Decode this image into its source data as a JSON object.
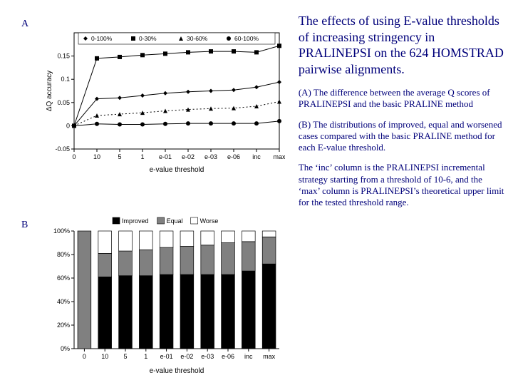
{
  "labels": {
    "A": "A",
    "B": "B"
  },
  "text": {
    "title": "The effects of using E-value thresholds of increasing stringency in PRALINEPSI on the 624 HOMSTRAD pairwise alignments.",
    "pA": "(A) The difference between the average Q scores of PRALINEPSI and the basic PRALINE method",
    "pB": "(B) The distributions of improved, equal and worsened cases compared with the basic PRALINE method for each E-value threshold.",
    "pC": "The ‘inc’ column is the PRALINEPSI incremental strategy starting from a threshold of 10-6, and the ‘max’ column is PRALINEPSI’s theoretical upper limit for the tested threshold range."
  },
  "chartA": {
    "type": "line",
    "xlabel": "e-value threshold",
    "ylabel": "ΔQ accuracy",
    "label_fontsize": 10,
    "categories": [
      "0",
      "10",
      "5",
      "1",
      "e-01",
      "e-02",
      "e-03",
      "e-06",
      "inc",
      "max"
    ],
    "ylim": [
      -0.05,
      0.2
    ],
    "yticks": [
      -0.05,
      0,
      0.05,
      0.1,
      0.15
    ],
    "legend": [
      "0-100%",
      "0-30%",
      "30-60%",
      "60-100%"
    ],
    "markers": [
      "diamond",
      "square",
      "triangle",
      "circle"
    ],
    "line_styles": [
      "solid",
      "solid",
      "dotted",
      "solid"
    ],
    "line_colors": [
      "#000000",
      "#000000",
      "#000000",
      "#000000"
    ],
    "series": {
      "0-100%": [
        0.0,
        0.058,
        0.06,
        0.065,
        0.07,
        0.073,
        0.075,
        0.077,
        0.083,
        0.094
      ],
      "0-30%": [
        0.0,
        0.145,
        0.148,
        0.152,
        0.155,
        0.158,
        0.16,
        0.16,
        0.158,
        0.172
      ],
      "30-60%": [
        0.0,
        0.022,
        0.025,
        0.028,
        0.032,
        0.035,
        0.037,
        0.038,
        0.042,
        0.052
      ],
      "60-100%": [
        0.0,
        0.004,
        0.003,
        0.003,
        0.004,
        0.005,
        0.005,
        0.005,
        0.005,
        0.01
      ]
    },
    "background_color": "#ffffff",
    "axis_color": "#000000"
  },
  "chartB": {
    "type": "stacked-bar",
    "xlabel": "e-value threshold",
    "label_fontsize": 10,
    "categories": [
      "0",
      "10",
      "5",
      "1",
      "e-01",
      "e-02",
      "e-03",
      "e-06",
      "inc",
      "max"
    ],
    "ylim": [
      0,
      100
    ],
    "yticks": [
      0,
      20,
      40,
      60,
      80,
      100
    ],
    "legend": [
      "Improved",
      "Equal",
      "Worse"
    ],
    "colors": {
      "Improved": "#000000",
      "Equal": "#808080",
      "Worse": "#ffffff"
    },
    "border_color": "#000000",
    "series": {
      "Improved": [
        0,
        61,
        62,
        62,
        63,
        63,
        63,
        63,
        66,
        72
      ],
      "Equal": [
        100,
        20,
        21,
        22,
        23,
        24,
        25,
        27,
        25,
        23
      ],
      "Worse": [
        0,
        19,
        17,
        16,
        14,
        13,
        12,
        10,
        9,
        5
      ]
    },
    "bar_width": 0.65,
    "background_color": "#ffffff",
    "axis_color": "#000000"
  }
}
